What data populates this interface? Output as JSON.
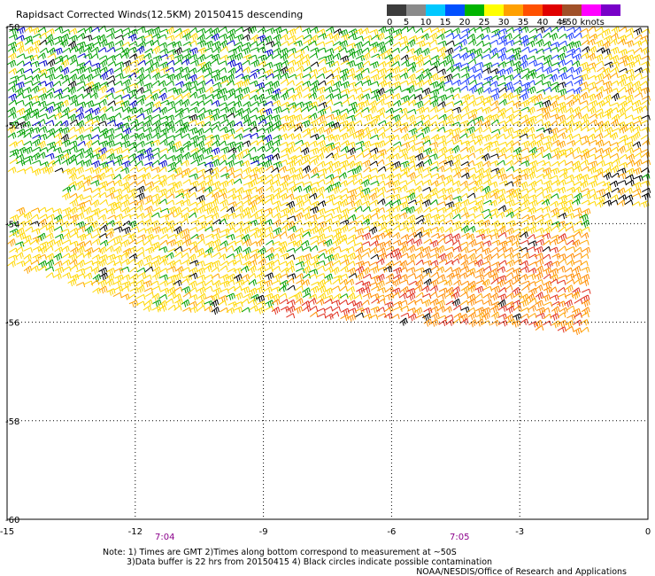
{
  "title": "Rapidsact Corrected Winds(12.5KM) 20150415 descending",
  "legend": {
    "ticks": [
      "0",
      "5",
      "10",
      "15",
      "20",
      "25",
      "30",
      "35",
      "40",
      "45",
      ">50 knots"
    ],
    "colors": [
      "#3c3c3c",
      "#8a8a8a",
      "#00c8ff",
      "#0050ff",
      "#00b400",
      "#ffff00",
      "#ffa000",
      "#ff5000",
      "#e00000",
      "#a05028",
      "#ff00ff",
      "#7800c8"
    ]
  },
  "lat_labels": [
    "-50",
    "-52",
    "-54",
    "-56",
    "-58",
    "-60"
  ],
  "lon_labels": [
    "-15",
    "-12",
    "-9",
    "-6",
    "-3",
    "0"
  ],
  "time_labels": [
    "7:04",
    "7:05"
  ],
  "notes": [
    "Note: 1) Times are GMT 2)Times along bottom correspond to measurement at ~50S",
    "3)Data buffer is 22 hrs from 20150415 4) Black circles indicate possible contamination"
  ],
  "credit": "NOAA/NESDIS/Office of Research and Applications",
  "chart_data": {
    "type": "wind-barb-map",
    "lat_range": [
      -60,
      -50
    ],
    "lon_range": [
      -15,
      0
    ],
    "gridlines": "dotted",
    "speed_color_scale_knots": [
      0,
      5,
      10,
      15,
      20,
      25,
      30,
      35,
      40,
      45,
      50
    ],
    "wind_field_regions": [
      {
        "area": "north-west, lat -50 to -53, lon -15 to -9",
        "speed_knots": "15-20",
        "dominant_color": "green"
      },
      {
        "area": "north-east, lat -50 to -51.5, lon -6 to -3",
        "speed_knots": "10-15",
        "dominant_color": "blue"
      },
      {
        "area": "central band, lat -52 to -55, lon -15 to -1",
        "speed_knots": "20-25",
        "dominant_color": "yellow"
      },
      {
        "area": "south-east, lat -54 to -56.5, lon -7 to -1.5",
        "speed_knots": "25-35",
        "dominant_color": "orange/red"
      },
      {
        "area": "scattered, flagged by algorithm",
        "speed_knots": "varied",
        "dominant_color": "black (possible contamination)"
      }
    ]
  }
}
